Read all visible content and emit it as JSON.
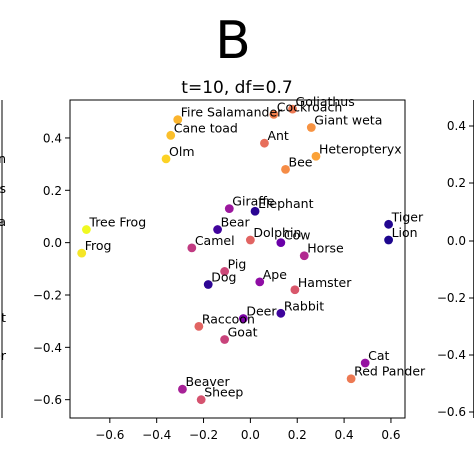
{
  "panel_letter": "B",
  "chart_data": {
    "type": "scatter",
    "title": "t=10, df=0.7",
    "xlabel": "",
    "ylabel": "",
    "xlim": [
      -0.77,
      0.66
    ],
    "ylim": [
      -0.67,
      0.545
    ],
    "xticks": [
      -0.6,
      -0.4,
      -0.2,
      0.0,
      0.2,
      0.4,
      0.6
    ],
    "xtick_labels": [
      "−0.6",
      "−0.4",
      "−0.2",
      "0.0",
      "0.2",
      "0.4",
      "0.6"
    ],
    "yticks": [
      0.4,
      0.2,
      0.0,
      -0.2,
      -0.4,
      -0.6
    ],
    "ytick_labels": [
      "0.4",
      "0.2",
      "0.0",
      "−0.2",
      "−0.4",
      "−0.6"
    ],
    "grid": false,
    "colormap": "plasma",
    "points": [
      {
        "label": "Goliathus",
        "x": 0.18,
        "y": 0.51,
        "color": "#ed7953"
      },
      {
        "label": "Cockroach",
        "x": 0.1,
        "y": 0.49,
        "color": "#f0804e"
      },
      {
        "label": "Fire Salamander",
        "x": -0.31,
        "y": 0.47,
        "color": "#fbb42d"
      },
      {
        "label": "Giant weta",
        "x": 0.26,
        "y": 0.44,
        "color": "#f79342"
      },
      {
        "label": "Cane toad",
        "x": -0.34,
        "y": 0.41,
        "color": "#fbbf2b"
      },
      {
        "label": "Ant",
        "x": 0.06,
        "y": 0.38,
        "color": "#e76e5b"
      },
      {
        "label": "Heteropteryx",
        "x": 0.28,
        "y": 0.33,
        "color": "#fba238"
      },
      {
        "label": "Olm",
        "x": -0.36,
        "y": 0.32,
        "color": "#fcd225"
      },
      {
        "label": "Bee",
        "x": 0.15,
        "y": 0.28,
        "color": "#f58c46"
      },
      {
        "label": "Giraffe",
        "x": -0.09,
        "y": 0.13,
        "color": "#9c179e"
      },
      {
        "label": "Elephant",
        "x": 0.02,
        "y": 0.12,
        "color": "#2a0593"
      },
      {
        "label": "Tiger",
        "x": 0.59,
        "y": 0.07,
        "color": "#220690"
      },
      {
        "label": "Tree Frog",
        "x": -0.7,
        "y": 0.05,
        "color": "#f0f921"
      },
      {
        "label": "Bear",
        "x": -0.14,
        "y": 0.05,
        "color": "#41049d"
      },
      {
        "label": "Lion",
        "x": 0.59,
        "y": 0.01,
        "color": "#1d068e"
      },
      {
        "label": "Dolphin",
        "x": 0.0,
        "y": 0.01,
        "color": "#e16462"
      },
      {
        "label": "Cow",
        "x": 0.13,
        "y": 0.0,
        "color": "#6a00a8"
      },
      {
        "label": "Camel",
        "x": -0.25,
        "y": -0.02,
        "color": "#c13b82"
      },
      {
        "label": "Frog",
        "x": -0.72,
        "y": -0.04,
        "color": "#f5e626"
      },
      {
        "label": "Horse",
        "x": 0.23,
        "y": -0.05,
        "color": "#b12a90"
      },
      {
        "label": "Pig",
        "x": -0.11,
        "y": -0.11,
        "color": "#cc4778"
      },
      {
        "label": "Ape",
        "x": 0.04,
        "y": -0.15,
        "color": "#8f0da4"
      },
      {
        "label": "Dog",
        "x": -0.18,
        "y": -0.16,
        "color": "#2d0594"
      },
      {
        "label": "Hamster",
        "x": 0.19,
        "y": -0.18,
        "color": "#d8576b"
      },
      {
        "label": "Rabbit",
        "x": 0.13,
        "y": -0.27,
        "color": "#3e049c"
      },
      {
        "label": "Deer",
        "x": -0.03,
        "y": -0.29,
        "color": "#7e03a8"
      },
      {
        "label": "Raccoon",
        "x": -0.22,
        "y": -0.32,
        "color": "#e16462"
      },
      {
        "label": "Goat",
        "x": -0.11,
        "y": -0.37,
        "color": "#c8437b"
      },
      {
        "label": "Cat",
        "x": 0.49,
        "y": -0.46,
        "color": "#9512a1"
      },
      {
        "label": "Red Pander",
        "x": 0.43,
        "y": -0.52,
        "color": "#ed7953"
      },
      {
        "label": "Beaver",
        "x": -0.29,
        "y": -0.56,
        "color": "#a72197"
      },
      {
        "label": "Sheep",
        "x": -0.21,
        "y": -0.6,
        "color": "#d5536f"
      }
    ]
  },
  "left_panel_fragments": {
    "labels": [
      "n",
      "thus",
      "nt weta",
      "t",
      "ander"
    ]
  },
  "right_panel_fragments": {
    "ytick_labels": [
      "0.4",
      "0.2",
      "0.0",
      "−0.2",
      "−0.4",
      "−0.6"
    ]
  }
}
